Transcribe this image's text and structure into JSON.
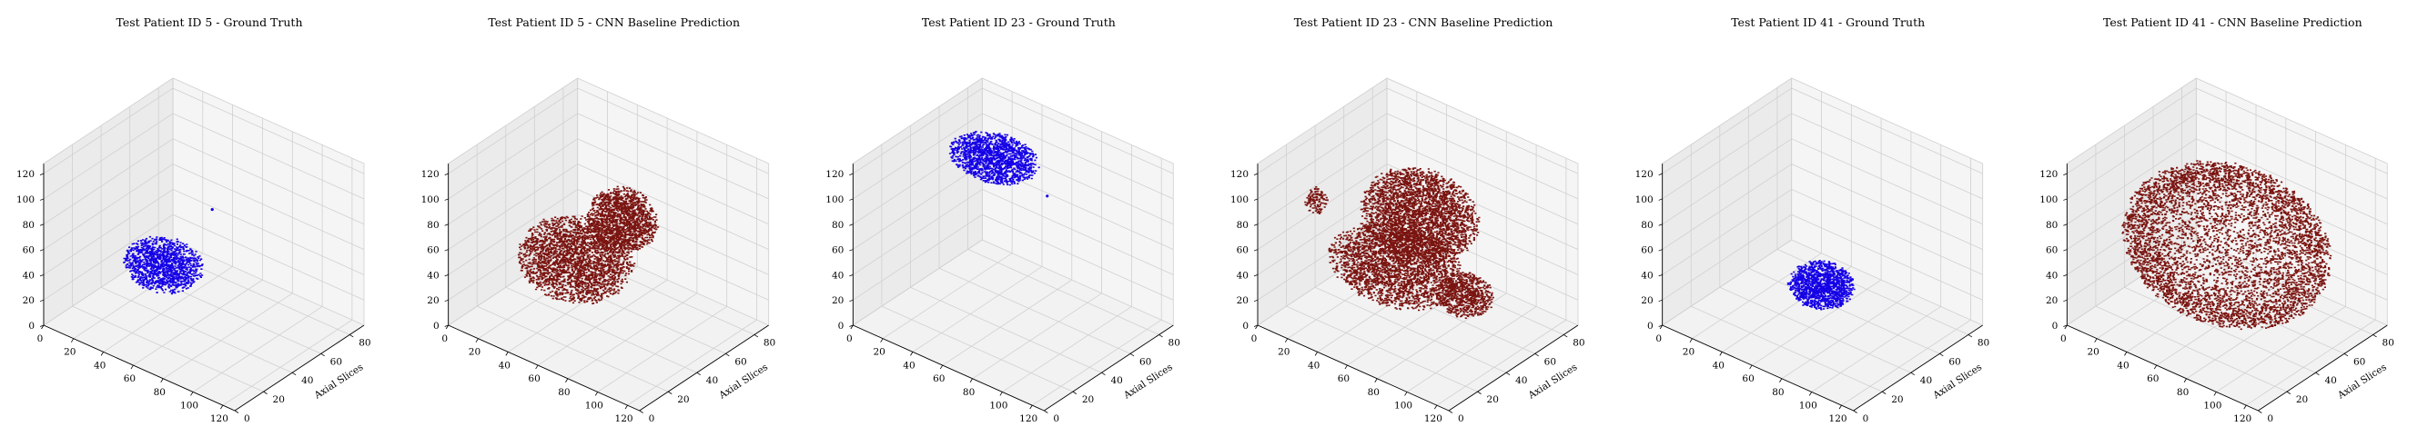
{
  "figure": {
    "background": "#ffffff"
  },
  "chart_data": [
    {
      "type": "scatter3d",
      "title": "Test Patient ID 5 - Ground Truth",
      "xlabel": "",
      "ylabel": "Axial Slices",
      "zlabel": "",
      "xlim": [
        0,
        128
      ],
      "ylim": [
        0,
        90
      ],
      "zlim": [
        0,
        128
      ],
      "xticks": [
        0,
        20,
        40,
        60,
        80,
        100,
        120
      ],
      "yticks": [
        0,
        20,
        40,
        60,
        80
      ],
      "zticks": [
        0,
        20,
        40,
        60,
        80,
        100,
        120
      ],
      "grid": true,
      "color": "#1400e6",
      "blobs": [
        {
          "x": 40,
          "y": 42,
          "z": 38,
          "rx": 22,
          "ry": 16,
          "rz": 16,
          "n": 1300
        }
      ],
      "outliers": [
        {
          "x": 60,
          "y": 55,
          "z": 82
        }
      ]
    },
    {
      "type": "scatter3d",
      "title": "Test Patient ID 5 - CNN Baseline Prediction",
      "xlabel": "",
      "ylabel": "Axial Slices",
      "zlabel": "",
      "xlim": [
        0,
        128
      ],
      "ylim": [
        0,
        90
      ],
      "zlim": [
        0,
        128
      ],
      "xticks": [
        0,
        20,
        40,
        60,
        80,
        100,
        120
      ],
      "yticks": [
        0,
        20,
        40,
        60,
        80
      ],
      "zticks": [
        0,
        20,
        40,
        60,
        80,
        100,
        120
      ],
      "grid": true,
      "color": "#7a1410",
      "blobs": [
        {
          "x": 45,
          "y": 42,
          "z": 45,
          "rx": 32,
          "ry": 24,
          "rz": 26,
          "n": 2600
        },
        {
          "x": 88,
          "y": 30,
          "z": 108,
          "rx": 20,
          "ry": 14,
          "rz": 22,
          "n": 1500
        }
      ],
      "outliers": []
    },
    {
      "type": "scatter3d",
      "title": "Test Patient ID 23 - Ground Truth",
      "xlabel": "",
      "ylabel": "Axial Slices",
      "zlabel": "",
      "xlim": [
        0,
        128
      ],
      "ylim": [
        0,
        90
      ],
      "zlim": [
        0,
        128
      ],
      "xticks": [
        0,
        20,
        40,
        60,
        80,
        100,
        120
      ],
      "yticks": [
        0,
        20,
        40,
        60,
        80
      ],
      "zticks": [
        0,
        20,
        40,
        60,
        80,
        100,
        120
      ],
      "grid": true,
      "color": "#1400e6",
      "blobs": [
        {
          "x": 58,
          "y": 38,
          "z": 135,
          "rx": 26,
          "ry": 16,
          "rz": 12,
          "n": 1500
        }
      ],
      "outliers": [
        {
          "x": 82,
          "y": 50,
          "z": 108
        }
      ]
    },
    {
      "type": "scatter3d",
      "title": "Test Patient ID 23 - CNN Baseline Prediction",
      "xlabel": "",
      "ylabel": "Axial Slices",
      "zlabel": "",
      "xlim": [
        0,
        128
      ],
      "ylim": [
        0,
        90
      ],
      "zlim": [
        0,
        128
      ],
      "xticks": [
        0,
        20,
        40,
        60,
        80,
        100,
        120
      ],
      "yticks": [
        0,
        20,
        40,
        60,
        80
      ],
      "zticks": [
        0,
        20,
        40,
        60,
        80,
        100,
        120
      ],
      "grid": true,
      "color": "#7a1410",
      "blobs": [
        {
          "x": 78,
          "y": 32,
          "z": 105,
          "rx": 34,
          "ry": 22,
          "rz": 30,
          "n": 3000
        },
        {
          "x": 50,
          "y": 45,
          "z": 40,
          "rx": 40,
          "ry": 24,
          "rz": 22,
          "n": 2600
        },
        {
          "x": 110,
          "y": 30,
          "z": 60,
          "rx": 16,
          "ry": 12,
          "rz": 14,
          "n": 700
        },
        {
          "x": 20,
          "y": 20,
          "z": 95,
          "rx": 6,
          "ry": 5,
          "rz": 10,
          "n": 120
        }
      ],
      "outliers": []
    },
    {
      "type": "scatter3d",
      "title": "Test Patient ID 41 - Ground Truth",
      "xlabel": "",
      "ylabel": "Axial Slices",
      "zlabel": "",
      "xlim": [
        0,
        128
      ],
      "ylim": [
        0,
        90
      ],
      "zlim": [
        0,
        128
      ],
      "xticks": [
        0,
        20,
        40,
        60,
        80,
        100,
        120
      ],
      "yticks": [
        0,
        20,
        40,
        60,
        80
      ],
      "zticks": [
        0,
        20,
        40,
        60,
        80,
        100,
        120
      ],
      "grid": true,
      "color": "#1400e6",
      "blobs": [
        {
          "x": 68,
          "y": 40,
          "z": 38,
          "rx": 18,
          "ry": 14,
          "rz": 14,
          "n": 1300
        }
      ],
      "outliers": []
    },
    {
      "type": "scatter3d",
      "title": "Test Patient ID 41 - CNN Baseline Prediction",
      "xlabel": "",
      "ylabel": "Axial Slices",
      "zlabel": "",
      "xlim": [
        0,
        128
      ],
      "ylim": [
        0,
        90
      ],
      "zlim": [
        0,
        128
      ],
      "xticks": [
        0,
        20,
        40,
        60,
        80,
        100,
        120
      ],
      "yticks": [
        0,
        20,
        40,
        60,
        80
      ],
      "zticks": [
        0,
        20,
        40,
        60,
        80,
        100,
        120
      ],
      "grid": true,
      "color": "#7a1410",
      "blobs": [
        {
          "x": 64,
          "y": 45,
          "z": 64,
          "rx": 60,
          "ry": 38,
          "rz": 52,
          "n": 5200,
          "shell": true
        }
      ],
      "outliers": []
    }
  ]
}
